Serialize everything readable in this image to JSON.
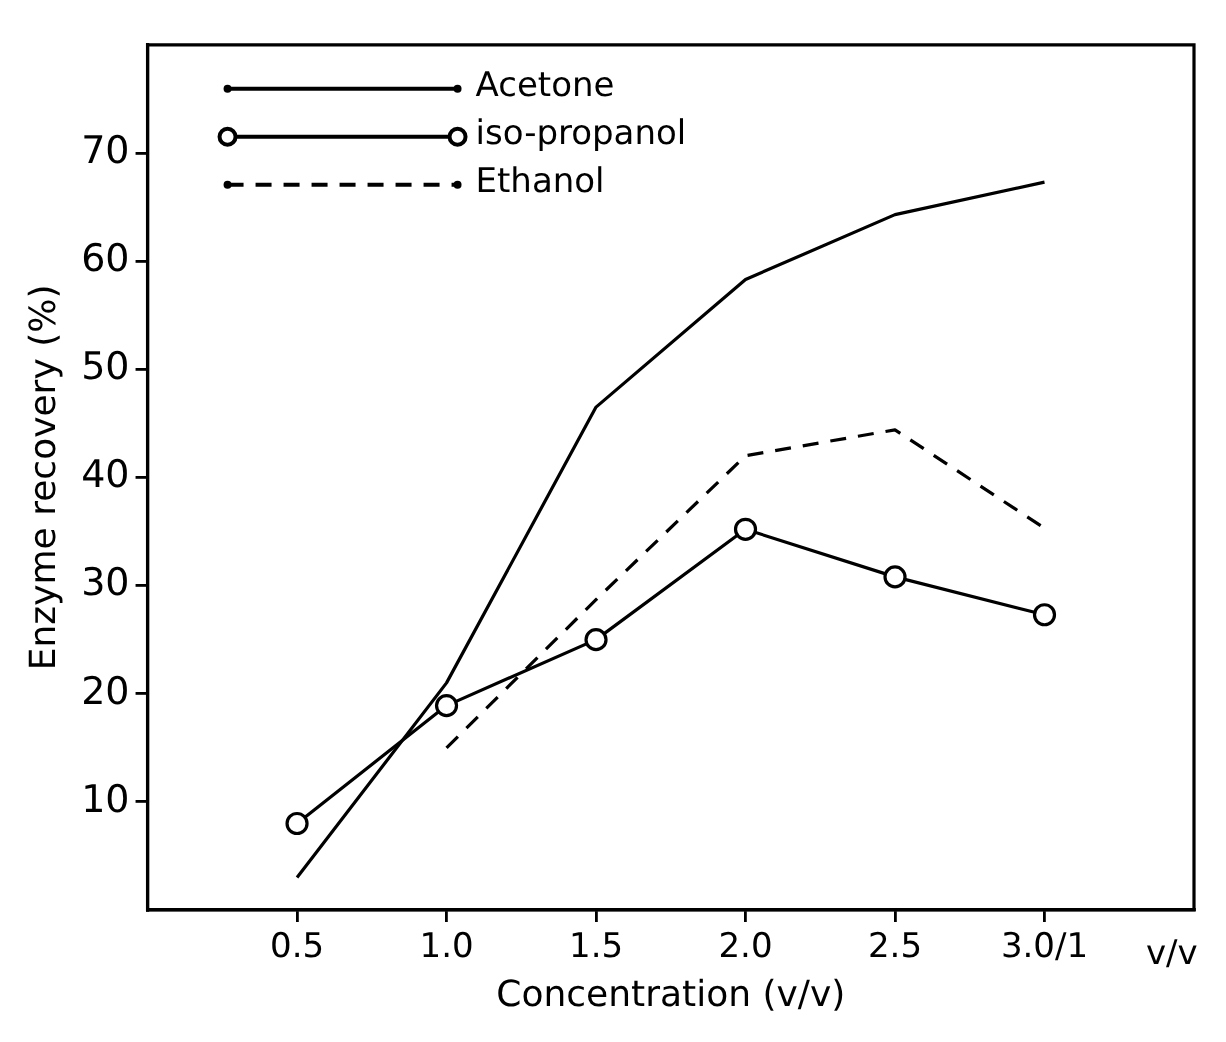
{
  "chart_data": {
    "type": "line",
    "xlabel": "Concentration (v/v)",
    "ylabel": "Enzyme recovery (%)",
    "xlim": [
      0,
      3.5
    ],
    "xticks": [
      {
        "value": 0.5,
        "label": "0.5"
      },
      {
        "value": 1.0,
        "label": "1.0"
      },
      {
        "value": 1.5,
        "label": "1.5"
      },
      {
        "value": 2.0,
        "label": "2.0"
      },
      {
        "value": 2.5,
        "label": "2.5"
      },
      {
        "value": 3.0,
        "label": "3.0/1"
      }
    ],
    "ylim": [
      0,
      80
    ],
    "yticks": [
      10,
      20,
      30,
      40,
      50,
      60,
      70
    ],
    "grid": false,
    "legend": "top left",
    "annotations": [
      "v/v"
    ],
    "series": [
      {
        "name": "Acetone",
        "color": "#000000",
        "marker": "none",
        "line_style": "solid",
        "x": [
          0.5,
          1.0,
          1.5,
          2.0,
          2.5,
          3.0
        ],
        "values": [
          3,
          21,
          46.5,
          58.3,
          64.3,
          67.3
        ]
      },
      {
        "name": "iso-propanol",
        "color": "#000000",
        "marker": "circle",
        "line_style": "solid",
        "x": [
          0.5,
          1.0,
          1.5,
          2.0,
          2.5,
          3.0
        ],
        "values": [
          8,
          18.9,
          25,
          35.2,
          30.8,
          27.3
        ]
      },
      {
        "name": "Ethanol",
        "color": "#000000",
        "marker": "none",
        "line_style": "dashed",
        "x": [
          1.0,
          1.5,
          2.0,
          2.5,
          3.0
        ],
        "values": [
          15,
          28.7,
          42,
          44.4,
          35.3
        ]
      }
    ]
  }
}
